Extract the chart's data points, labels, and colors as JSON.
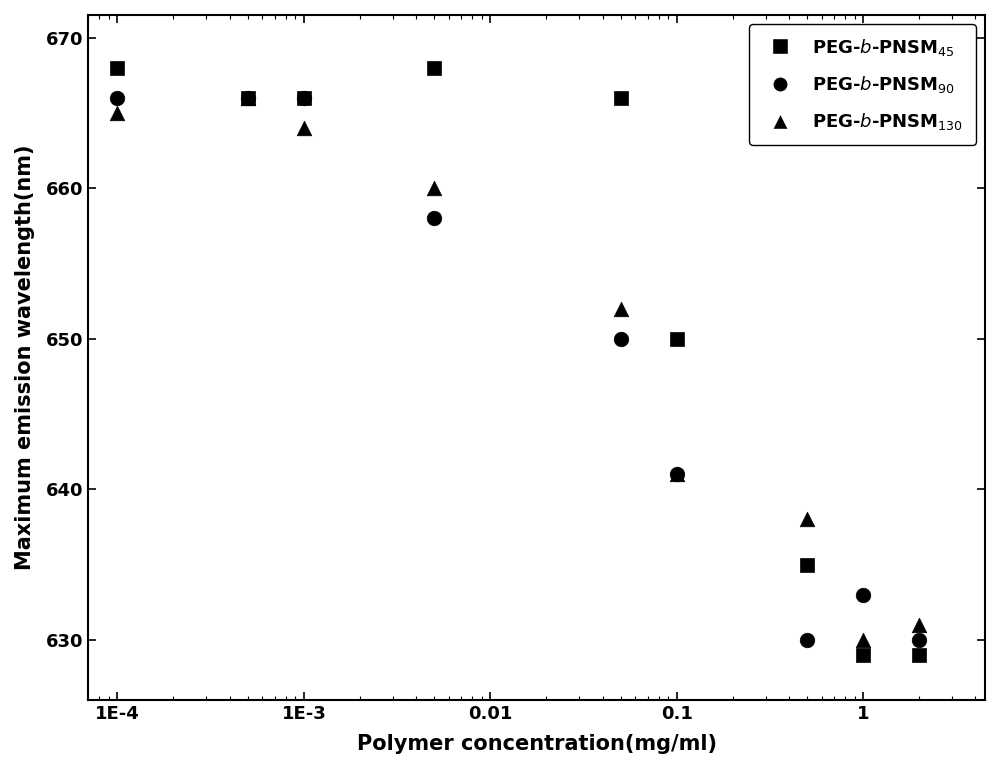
{
  "series": [
    {
      "label": "PEG-$b$-PNSM$_{45}$",
      "marker": "s",
      "x": [
        0.0001,
        0.0005,
        0.001,
        0.005,
        0.05,
        0.1,
        0.5,
        1.0,
        2.0
      ],
      "y": [
        668,
        666,
        666,
        668,
        666,
        650,
        635,
        629,
        629
      ]
    },
    {
      "label": "PEG-$b$-PNSM$_{90}$",
      "marker": "o",
      "x": [
        0.0001,
        0.0005,
        0.001,
        0.005,
        0.05,
        0.1,
        0.5,
        1.0,
        2.0
      ],
      "y": [
        666,
        666,
        666,
        658,
        650,
        641,
        630,
        633,
        630
      ]
    },
    {
      "label": "PEG-$b$-PNSM$_{130}$",
      "marker": "^",
      "x": [
        0.0001,
        0.0005,
        0.001,
        0.005,
        0.05,
        0.1,
        0.5,
        1.0,
        2.0
      ],
      "y": [
        665,
        666,
        664,
        660,
        652,
        641,
        638,
        630,
        631
      ]
    }
  ],
  "xlabel": "Polymer concentration(mg/ml)",
  "ylabel": "Maximum emission wavelength(nm)",
  "ylim": [
    626,
    671.5
  ],
  "yticks": [
    630,
    640,
    650,
    660,
    670
  ],
  "xtick_vals": [
    0.0001,
    0.001,
    0.01,
    0.1,
    1
  ],
  "xtick_labels": [
    "1E-4",
    "1E-3",
    "0.01",
    "0.1",
    "1"
  ],
  "xlim": [
    7e-05,
    4.5
  ],
  "marker_size": 110,
  "color": "black",
  "legend_loc": "upper right",
  "legend_fontsize": 13,
  "axis_label_fontsize": 15,
  "tick_fontsize": 13
}
